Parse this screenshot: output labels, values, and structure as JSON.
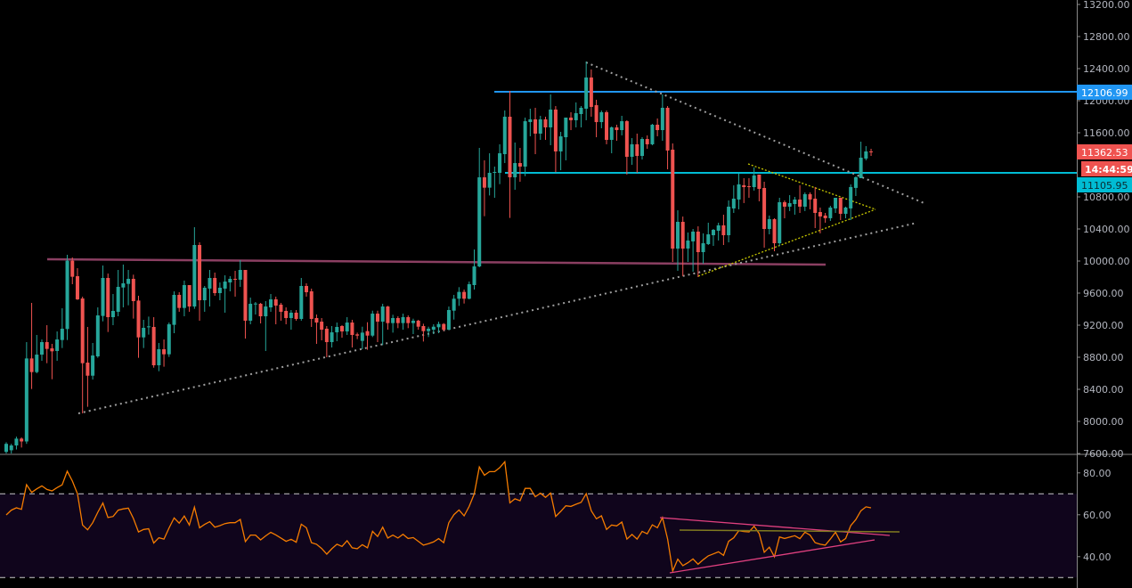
{
  "chart_data": {
    "type": "candlestick",
    "title": "",
    "colors": {
      "up": "#26a69a",
      "down": "#ef5350",
      "rsi": "#f57c00",
      "rsi_band": "#10051c",
      "resistance": "#2196f3",
      "support": "#00bcd4",
      "range_line": "#8b3f62",
      "trend_dotted": "#9e9e9e",
      "pennant": "#c8c800",
      "rsi_trend": "#e0407f",
      "rsi_level": "#807a20"
    },
    "price_axis": {
      "ylim": [
        7600,
        13200
      ],
      "ticks": [
        "13200.00",
        "12800.00",
        "12400.00",
        "12000.00",
        "11600.00",
        "10800.00",
        "10400.00",
        "10000.00",
        "9600.00",
        "9200.00",
        "8800.00",
        "8400.00",
        "8000.00",
        "7600.00"
      ],
      "grid": false
    },
    "rsi_axis": {
      "ylim": [
        25,
        90
      ],
      "ticks": [
        "80.00",
        "60.00",
        "40.00"
      ],
      "levels": [
        70,
        30
      ]
    },
    "labels": {
      "resistance": {
        "text": "12106.99",
        "value": 12106.99
      },
      "last_price": {
        "text": "11362.53",
        "value": 11362.53
      },
      "countdown": {
        "text": "14:44:59"
      },
      "support": {
        "text": "11105.95",
        "value": 11105.95
      }
    },
    "ohlc": [
      [
        7620,
        7740,
        7600,
        7720
      ],
      [
        7640,
        7720,
        7600,
        7700
      ],
      [
        7700,
        7810,
        7650,
        7785
      ],
      [
        7785,
        7800,
        7674,
        7750
      ],
      [
        7750,
        8989,
        7720,
        8785
      ],
      [
        8785,
        9478,
        8404,
        8615
      ],
      [
        8615,
        9078,
        8600,
        8833
      ],
      [
        8833,
        9022,
        8756,
        8989
      ],
      [
        8989,
        9200,
        8726,
        8904
      ],
      [
        8911,
        8967,
        8526,
        8874
      ],
      [
        8878,
        9122,
        8756,
        9022
      ],
      [
        9015,
        9411,
        8915,
        9156
      ],
      [
        9152,
        10078,
        9015,
        10004
      ],
      [
        10004,
        10045,
        9711,
        9804
      ],
      [
        9811,
        9911,
        9515,
        9522
      ],
      [
        9533,
        9556,
        8100,
        8726
      ],
      [
        8733,
        9178,
        8182,
        8570
      ],
      [
        8570,
        8978,
        8522,
        8822
      ],
      [
        8811,
        9422,
        8793,
        9322
      ],
      [
        9315,
        9944,
        9248,
        9789
      ],
      [
        9789,
        9844,
        9115,
        9300
      ],
      [
        9300,
        9589,
        9200,
        9378
      ],
      [
        9367,
        9889,
        9311,
        9678
      ],
      [
        9670,
        9956,
        9422,
        9722
      ],
      [
        9715,
        9889,
        9448,
        9778
      ],
      [
        9778,
        9830,
        9282,
        9500
      ],
      [
        9507,
        9567,
        8793,
        9048
      ],
      [
        9048,
        9267,
        8915,
        9167
      ],
      [
        9174,
        9307,
        9082,
        9185
      ],
      [
        9178,
        9300,
        8670,
        8700
      ],
      [
        8700,
        8978,
        8626,
        8900
      ],
      [
        8900,
        9022,
        8682,
        8837
      ],
      [
        8837,
        9233,
        8804,
        9211
      ],
      [
        9204,
        9622,
        9100,
        9578
      ],
      [
        9578,
        9611,
        9367,
        9415
      ],
      [
        9415,
        9756,
        9311,
        9700
      ],
      [
        9700,
        9700,
        9367,
        9433
      ],
      [
        9433,
        10422,
        9404,
        10200
      ],
      [
        10200,
        10233,
        9256,
        9511
      ],
      [
        9511,
        9689,
        9367,
        9667
      ],
      [
        9656,
        9889,
        9433,
        9789
      ],
      [
        9789,
        9856,
        9567,
        9600
      ],
      [
        9600,
        9733,
        9511,
        9667
      ],
      [
        9656,
        9822,
        9356,
        9744
      ],
      [
        9733,
        9811,
        9622,
        9778
      ],
      [
        9778,
        9878,
        9556,
        9770
      ],
      [
        9767,
        10011,
        9678,
        9889
      ],
      [
        9889,
        9889,
        9033,
        9256
      ],
      [
        9256,
        9544,
        9211,
        9467
      ],
      [
        9460,
        9489,
        9333,
        9470
      ],
      [
        9467,
        9478,
        9222,
        9311
      ],
      [
        9311,
        9500,
        8878,
        9433
      ],
      [
        9422,
        9589,
        9367,
        9522
      ],
      [
        9522,
        9556,
        9211,
        9444
      ],
      [
        9456,
        9478,
        9256,
        9367
      ],
      [
        9378,
        9422,
        9211,
        9289
      ],
      [
        9289,
        9389,
        9144,
        9356
      ],
      [
        9356,
        9389,
        9256,
        9278
      ],
      [
        9278,
        9789,
        9256,
        9689
      ],
      [
        9689,
        9722,
        9556,
        9611
      ],
      [
        9622,
        9656,
        9178,
        9278
      ],
      [
        9289,
        9333,
        8967,
        9233
      ],
      [
        9244,
        9289,
        9011,
        9144
      ],
      [
        9156,
        9189,
        8800,
        8989
      ],
      [
        8989,
        9189,
        8922,
        9111
      ],
      [
        9111,
        9233,
        9000,
        9178
      ],
      [
        9189,
        9200,
        9044,
        9122
      ],
      [
        9122,
        9300,
        9078,
        9233
      ],
      [
        9233,
        9267,
        8922,
        9078
      ],
      [
        9085,
        9107,
        9026,
        9070
      ],
      [
        9004,
        9181,
        8900,
        9107
      ],
      [
        9126,
        9237,
        8893,
        9070
      ],
      [
        9070,
        9381,
        9052,
        9344
      ],
      [
        9344,
        9381,
        8989,
        9244
      ],
      [
        9244,
        9467,
        8952,
        9433
      ],
      [
        9433,
        9441,
        9144,
        9226
      ],
      [
        9226,
        9330,
        9107,
        9289
      ],
      [
        9289,
        9311,
        9163,
        9226
      ],
      [
        9226,
        9344,
        9144,
        9300
      ],
      [
        9300,
        9322,
        9163,
        9226
      ],
      [
        9226,
        9281,
        9089,
        9256
      ],
      [
        9256,
        9267,
        9144,
        9181
      ],
      [
        9189,
        9218,
        8996,
        9126
      ],
      [
        9126,
        9181,
        9052,
        9156
      ],
      [
        9144,
        9211,
        9089,
        9181
      ],
      [
        9174,
        9244,
        9100,
        9215
      ],
      [
        9215,
        9226,
        9126,
        9144
      ],
      [
        9144,
        9433,
        9137,
        9389
      ],
      [
        9381,
        9578,
        9270,
        9530
      ],
      [
        9530,
        9674,
        9441,
        9615
      ],
      [
        9615,
        9644,
        9470,
        9530
      ],
      [
        9530,
        9744,
        9522,
        9711
      ],
      [
        9700,
        10144,
        9644,
        9933
      ],
      [
        9933,
        11411,
        9922,
        11044
      ],
      [
        11044,
        11256,
        10559,
        10915
      ],
      [
        10915,
        11344,
        10818,
        11100
      ],
      [
        11100,
        11178,
        10789,
        11111
      ],
      [
        11100,
        11456,
        10959,
        11344
      ],
      [
        11333,
        11878,
        11222,
        11800
      ],
      [
        11800,
        12122,
        10537,
        11044
      ],
      [
        11044,
        11478,
        10889,
        11222
      ],
      [
        11222,
        11411,
        10989,
        11178
      ],
      [
        11178,
        11789,
        11059,
        11744
      ],
      [
        11733,
        11900,
        11556,
        11767
      ],
      [
        11767,
        11911,
        11333,
        11589
      ],
      [
        11589,
        11811,
        11511,
        11767
      ],
      [
        11767,
        11800,
        11511,
        11667
      ],
      [
        11667,
        12078,
        11444,
        11889
      ],
      [
        11889,
        11933,
        11107,
        11367
      ],
      [
        11367,
        11611,
        11133,
        11555
      ],
      [
        11544,
        11789,
        11256,
        11789
      ],
      [
        11789,
        11856,
        11633,
        11756
      ],
      [
        11756,
        11978,
        11667,
        11844
      ],
      [
        11833,
        11933,
        11667,
        11911
      ],
      [
        11900,
        12489,
        11756,
        12289
      ],
      [
        12289,
        12389,
        11800,
        11922
      ],
      [
        11944,
        12011,
        11544,
        11733
      ],
      [
        11733,
        11878,
        11656,
        11856
      ],
      [
        11856,
        11878,
        11456,
        11511
      ],
      [
        11511,
        11678,
        11344,
        11667
      ],
      [
        11667,
        11700,
        11500,
        11633
      ],
      [
        11633,
        11811,
        11567,
        11744
      ],
      [
        11744,
        11756,
        11078,
        11300
      ],
      [
        11300,
        11533,
        11200,
        11456
      ],
      [
        11456,
        11589,
        11100,
        11311
      ],
      [
        11311,
        11544,
        11267,
        11522
      ],
      [
        11522,
        11567,
        11400,
        11456
      ],
      [
        11456,
        11711,
        11444,
        11700
      ],
      [
        11700,
        11778,
        11556,
        11633
      ],
      [
        11633,
        12078,
        11500,
        11911
      ],
      [
        11911,
        11933,
        11144,
        11378
      ],
      [
        11389,
        11467,
        9989,
        10155
      ],
      [
        10155,
        10633,
        9878,
        10489
      ],
      [
        10489,
        10555,
        9811,
        10155
      ],
      [
        10156,
        10356,
        9989,
        10256
      ],
      [
        10245,
        10400,
        9867,
        10367
      ],
      [
        10367,
        10433,
        9800,
        10111
      ],
      [
        10111,
        10345,
        9967,
        10222
      ],
      [
        10211,
        10478,
        10200,
        10333
      ],
      [
        10322,
        10400,
        10189,
        10389
      ],
      [
        10378,
        10478,
        10256,
        10445
      ],
      [
        10445,
        10578,
        10200,
        10322
      ],
      [
        10322,
        10756,
        10233,
        10678
      ],
      [
        10656,
        10944,
        10600,
        10778
      ],
      [
        10767,
        11089,
        10645,
        10956
      ],
      [
        10945,
        11033,
        10723,
        10922
      ],
      [
        10933,
        11033,
        10789,
        10922
      ],
      [
        10922,
        11167,
        10878,
        11067
      ],
      [
        11078,
        11078,
        10745,
        10900
      ],
      [
        10911,
        10989,
        10167,
        10400
      ],
      [
        10400,
        10567,
        10333,
        10522
      ],
      [
        10522,
        10533,
        10122,
        10222
      ],
      [
        10222,
        10789,
        10189,
        10734
      ],
      [
        10734,
        10756,
        10533,
        10678
      ],
      [
        10678,
        10822,
        10623,
        10722
      ],
      [
        10711,
        10800,
        10578,
        10767
      ],
      [
        10767,
        10945,
        10600,
        10678
      ],
      [
        10678,
        10856,
        10623,
        10834
      ],
      [
        10834,
        10856,
        10645,
        10767
      ],
      [
        10778,
        10923,
        10411,
        10600
      ],
      [
        10611,
        10667,
        10345,
        10556
      ],
      [
        10567,
        10600,
        10478,
        10534
      ],
      [
        10534,
        10689,
        10500,
        10667
      ],
      [
        10656,
        10789,
        10600,
        10789
      ],
      [
        10789,
        10789,
        10511,
        10589
      ],
      [
        10589,
        10678,
        10533,
        10667
      ],
      [
        10656,
        10956,
        10511,
        10923
      ],
      [
        10912,
        11056,
        10811,
        11045
      ],
      [
        11034,
        11489,
        11034,
        11289
      ],
      [
        11278,
        11433,
        11256,
        11367
      ],
      [
        11367,
        11400,
        11311,
        11362.53
      ]
    ],
    "rsi": [
      59.9,
      62.2,
      63.3,
      62.6,
      74.4,
      70.7,
      72.4,
      73.8,
      72.1,
      71.4,
      73.0,
      74.3,
      80.8,
      76.1,
      70.0,
      55.1,
      52.8,
      56.2,
      61.2,
      65.6,
      58.7,
      59.2,
      62.2,
      62.8,
      63.2,
      58.2,
      51.8,
      53.0,
      53.3,
      46.5,
      49.0,
      48.4,
      53.7,
      58.5,
      56.0,
      59.4,
      55.1,
      63.6,
      53.8,
      55.4,
      56.7,
      54.1,
      54.8,
      55.8,
      56.2,
      56.2,
      57.8,
      47.2,
      50.3,
      50.3,
      48.0,
      49.9,
      51.6,
      50.4,
      48.9,
      47.3,
      48.3,
      46.9,
      55.5,
      53.8,
      46.7,
      45.9,
      43.9,
      41.2,
      43.8,
      45.9,
      44.9,
      47.6,
      44.2,
      43.8,
      45.7,
      44.2,
      52.1,
      49.6,
      54.1,
      48.9,
      50.3,
      48.9,
      50.7,
      48.7,
      49.1,
      47.3,
      45.5,
      46.2,
      47.0,
      48.6,
      46.7,
      56.2,
      60.1,
      62.3,
      59.5,
      64.0,
      70.0,
      82.8,
      78.9,
      80.6,
      80.6,
      82.5,
      85.3,
      65.7,
      67.6,
      66.7,
      72.6,
      72.6,
      68.6,
      70.3,
      68.3,
      70.4,
      59.2,
      61.6,
      64.3,
      64.0,
      65.0,
      65.9,
      70.1,
      61.9,
      58.1,
      59.5,
      53.0,
      55.1,
      54.7,
      56.5,
      48.4,
      50.6,
      48.4,
      52.1,
      50.9,
      55.2,
      53.8,
      58.7,
      48.4,
      33.1,
      38.8,
      35.7,
      37.1,
      38.9,
      36.4,
      38.5,
      40.4,
      41.3,
      42.3,
      40.6,
      47.3,
      49.0,
      52.4,
      52.0,
      51.8,
      54.5,
      51.0,
      42.1,
      44.5,
      39.9,
      49.4,
      48.7,
      49.3,
      50.0,
      48.6,
      51.7,
      50.3,
      46.7,
      45.9,
      45.5,
      48.4,
      51.7,
      47.0,
      48.7,
      54.8,
      57.7,
      61.9,
      63.8,
      63.3
    ]
  }
}
